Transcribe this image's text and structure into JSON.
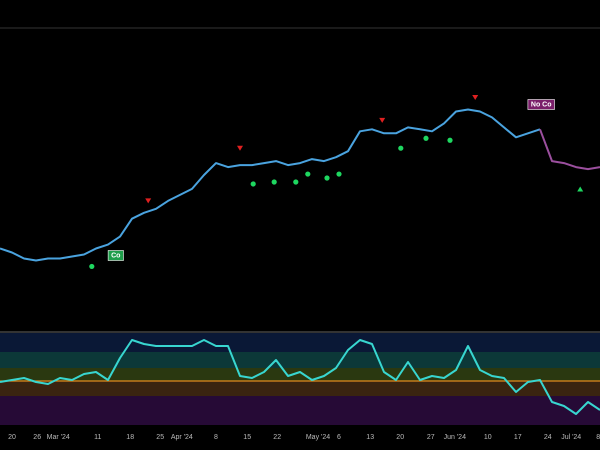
{
  "chart_data": [
    {
      "type": "line",
      "xlim": [
        0,
        100
      ],
      "ylim": [
        0,
        302
      ],
      "series": [
        {
          "color": "#4aa3df",
          "x": [
            0,
            2,
            4,
            6,
            8,
            10,
            12,
            14,
            16,
            18,
            20,
            22,
            24,
            26,
            28,
            30,
            32,
            34,
            36,
            38,
            40,
            42,
            44,
            46,
            48,
            50,
            52,
            54,
            56,
            58,
            60,
            62,
            64,
            66,
            68,
            70,
            72,
            74,
            76,
            78,
            80,
            82,
            84,
            86,
            88,
            90
          ],
          "values": [
            82,
            78,
            72,
            70,
            72,
            72,
            74,
            76,
            82,
            86,
            94,
            112,
            118,
            122,
            130,
            136,
            142,
            156,
            168,
            164,
            166,
            166,
            168,
            170,
            166,
            168,
            172,
            170,
            174,
            180,
            200,
            202,
            198,
            198,
            204,
            202,
            200,
            208,
            220,
            222,
            220,
            214,
            204,
            194,
            198,
            202
          ]
        },
        {
          "color": "#9b4f9e",
          "x": [
            90,
            92,
            94,
            96,
            98,
            100
          ],
          "values": [
            202,
            170,
            168,
            164,
            162,
            164
          ]
        }
      ],
      "markers": [
        {
          "shape": "triangle-down",
          "color": "#e02020",
          "x": [
            24.7,
            40,
            63.7,
            79.2
          ],
          "values": [
            130,
            183,
            211,
            234
          ]
        },
        {
          "shape": "circle",
          "color": "#1ed760",
          "x": [
            15.3,
            42.2,
            45.7,
            49.3,
            51.3,
            54.5,
            56.5,
            66.8,
            71,
            75
          ],
          "values": [
            64,
            147,
            149,
            149,
            157,
            153,
            157,
            183,
            193,
            191
          ]
        },
        {
          "shape": "triangle-up",
          "color": "#1ed760",
          "x": [
            96.7
          ],
          "values": [
            142
          ]
        }
      ],
      "annotations": [
        {
          "text": "Co",
          "x": 19.3,
          "value": 75,
          "color": "#1e9e4a"
        },
        {
          "text": "No Co",
          "x": 90.2,
          "value": 227,
          "color": "#7a1f6a"
        }
      ]
    },
    {
      "type": "line",
      "xlim": [
        0,
        100
      ],
      "ylim": [
        0,
        92
      ],
      "level": 44,
      "level_color": "#e08a1e",
      "series": [
        {
          "color": "#38d6d0",
          "x": [
            0,
            2,
            4,
            6,
            8,
            10,
            12,
            14,
            16,
            18,
            20,
            22,
            24,
            26,
            28,
            30,
            32,
            34,
            36,
            38,
            40,
            42,
            44,
            46,
            48,
            50,
            52,
            54,
            56,
            58,
            60,
            62,
            64,
            66,
            68,
            70,
            72,
            74,
            76,
            78,
            80,
            82,
            84,
            86,
            88,
            90,
            92,
            94,
            96,
            98,
            100
          ],
          "values": [
            43,
            45,
            47,
            43,
            41,
            47,
            45,
            51,
            53,
            45,
            67,
            85,
            81,
            79,
            79,
            79,
            79,
            85,
            79,
            79,
            49,
            47,
            53,
            65,
            49,
            53,
            45,
            49,
            57,
            75,
            85,
            81,
            53,
            45,
            63,
            45,
            49,
            47,
            55,
            79,
            55,
            49,
            47,
            33,
            43,
            45,
            23,
            19,
            11,
            23,
            15
          ]
        }
      ],
      "xticks": [
        {
          "value": 2,
          "label": "20"
        },
        {
          "value": 6.2,
          "label": "26"
        },
        {
          "value": 9.7,
          "label": "Mar '24"
        },
        {
          "value": 16.3,
          "label": "11"
        },
        {
          "value": 21.7,
          "label": "18"
        },
        {
          "value": 26.7,
          "label": "25"
        },
        {
          "value": 30.3,
          "label": "Apr '24"
        },
        {
          "value": 36,
          "label": "8"
        },
        {
          "value": 41.2,
          "label": "15"
        },
        {
          "value": 46.2,
          "label": "22"
        },
        {
          "value": 53,
          "label": "May '24"
        },
        {
          "value": 56.5,
          "label": "6"
        },
        {
          "value": 61.7,
          "label": "13"
        },
        {
          "value": 66.7,
          "label": "20"
        },
        {
          "value": 71.8,
          "label": "27"
        },
        {
          "value": 75.8,
          "label": "Jun '24"
        },
        {
          "value": 81.3,
          "label": "10"
        },
        {
          "value": 86.3,
          "label": "17"
        },
        {
          "value": 91.3,
          "label": "24"
        },
        {
          "value": 95.2,
          "label": "Jul '24"
        },
        {
          "value": 99.7,
          "label": "8"
        }
      ]
    }
  ]
}
